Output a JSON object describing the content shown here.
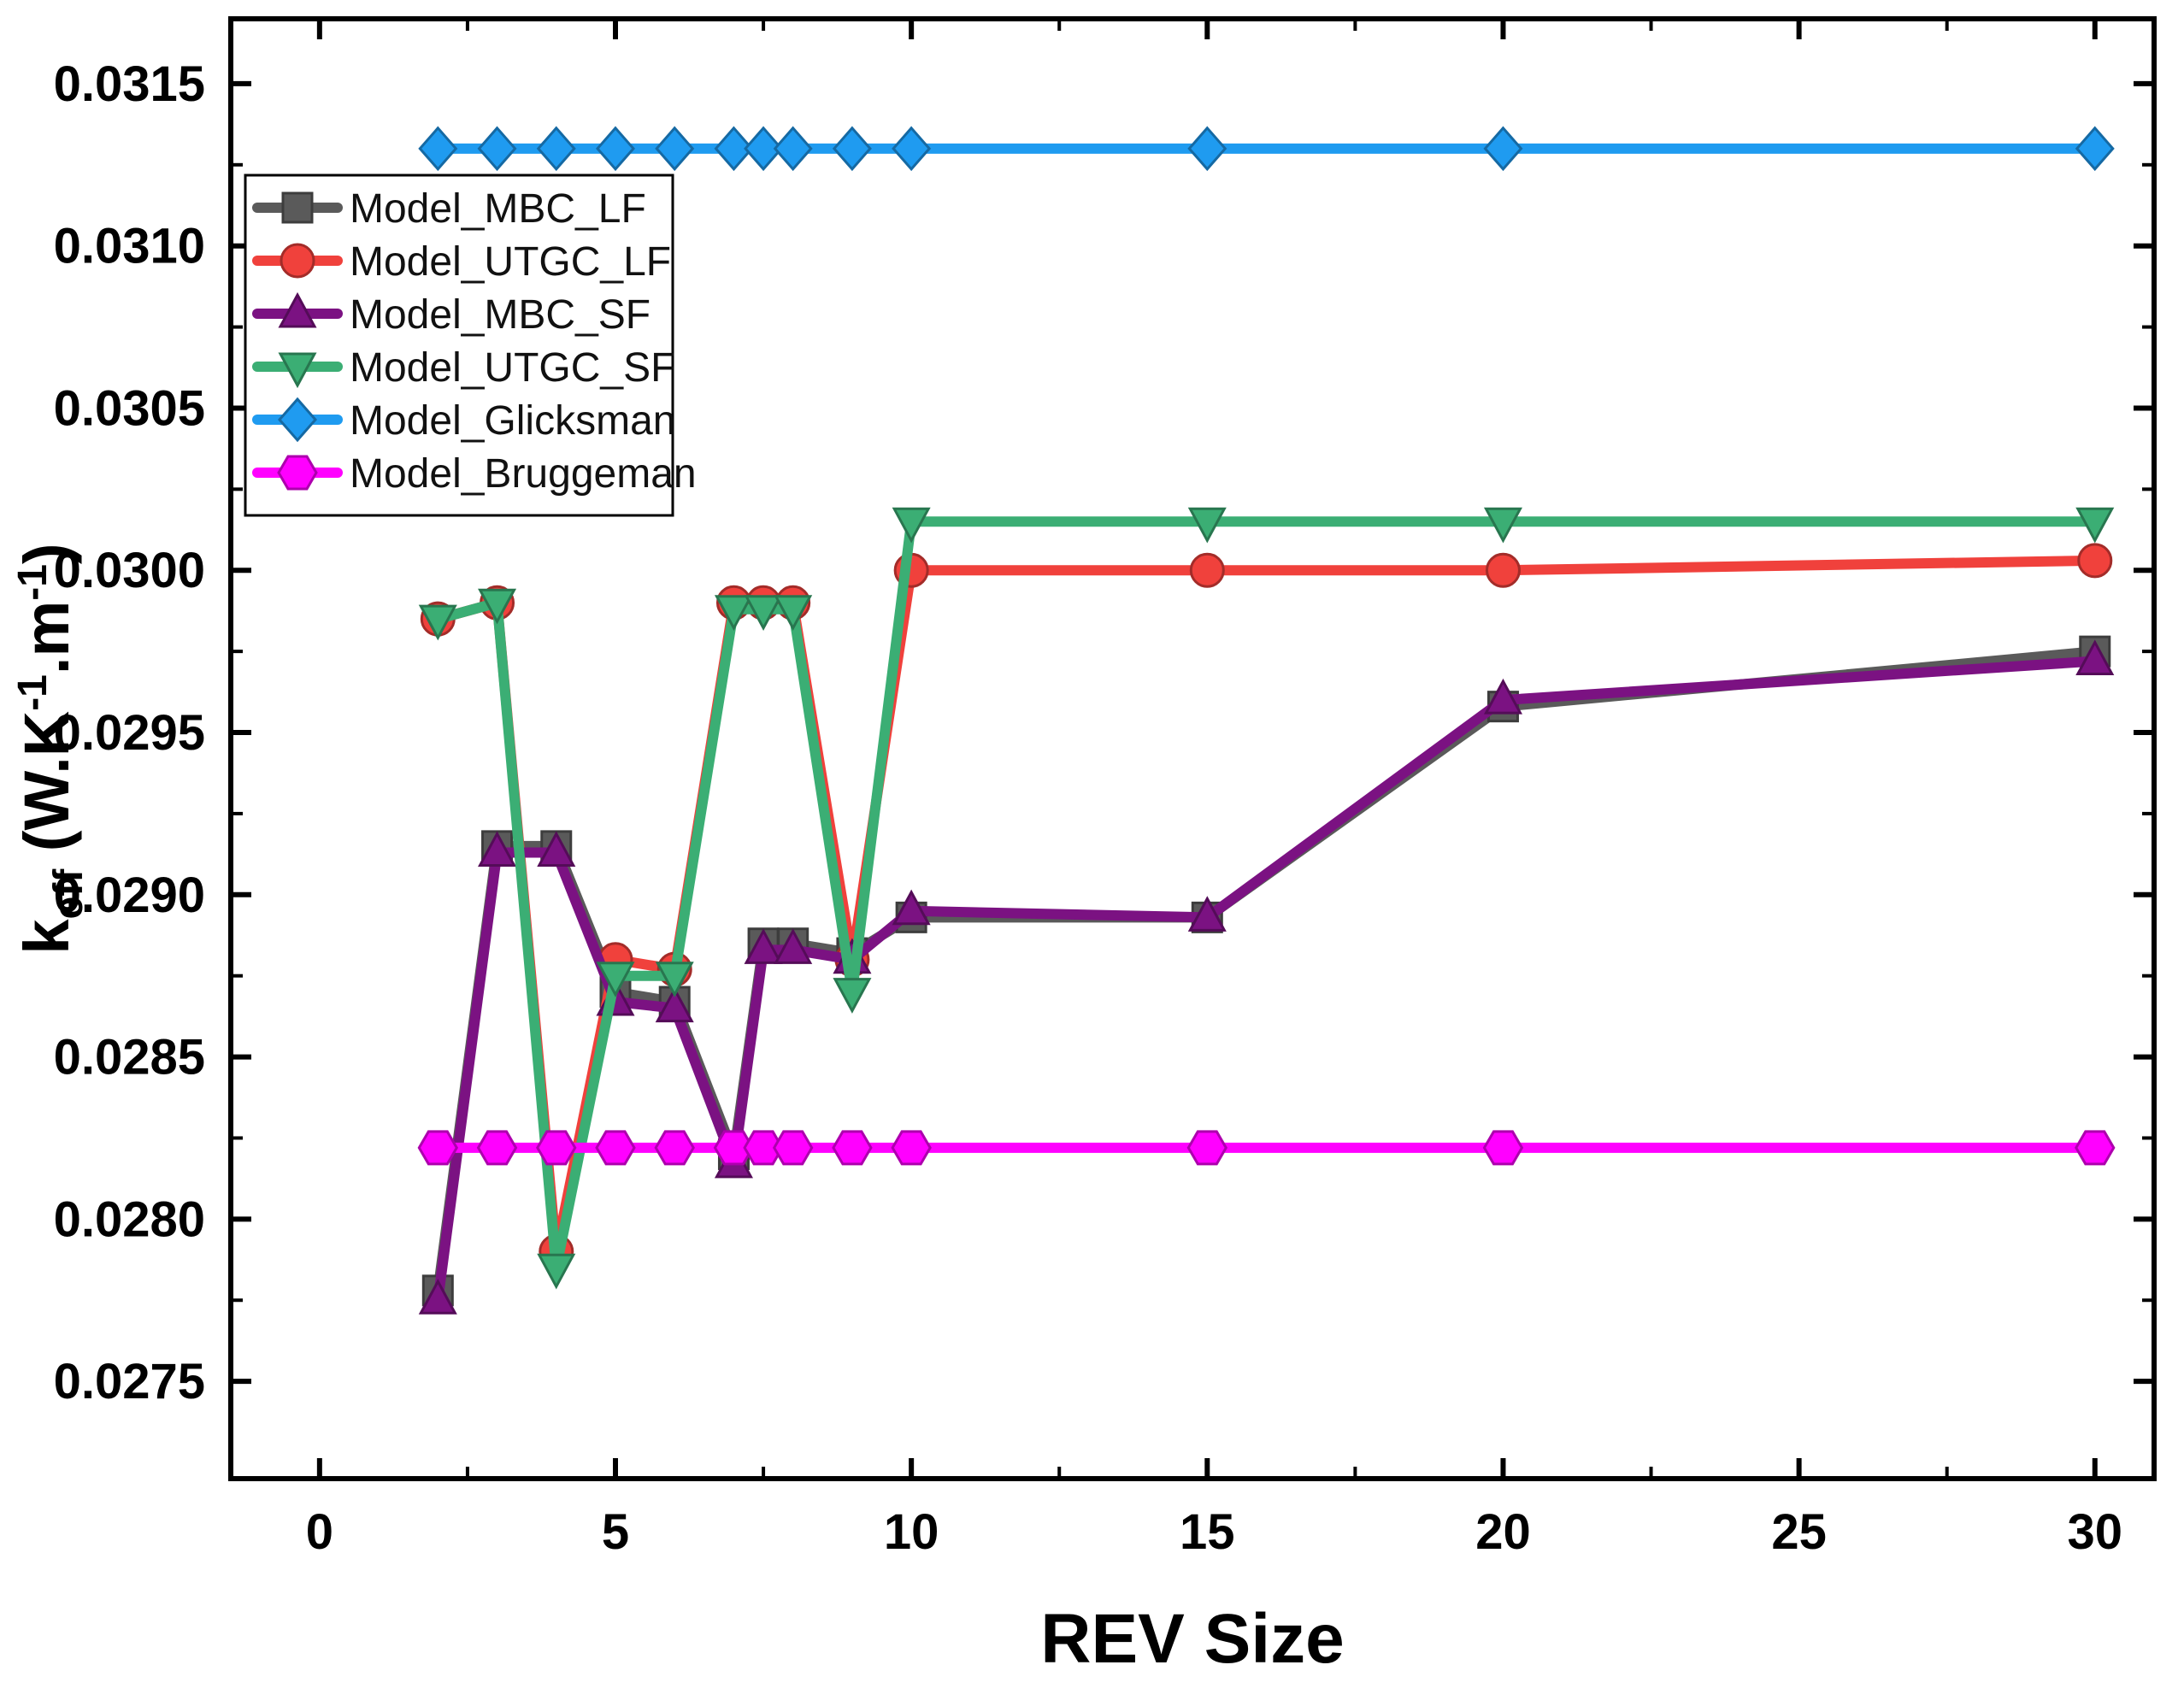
{
  "figure": {
    "background": "#ffffff",
    "frame_color": "#000000"
  },
  "chart_data": {
    "type": "line",
    "title": "",
    "xlabel": "REV Size",
    "ylabel_parts": [
      {
        "t": "k"
      },
      {
        "t": "eff",
        "sub": true
      },
      {
        "t": " (W.K"
      },
      {
        "t": "-1",
        "sup": true
      },
      {
        "t": ".m"
      },
      {
        "t": "-1",
        "sup": true
      },
      {
        "t": ")"
      }
    ],
    "grid": false,
    "legend_position": "upper-left",
    "xlim": [
      -1.5,
      31
    ],
    "ylim": [
      0.0272,
      0.0317
    ],
    "x_ticks": [
      0,
      5,
      10,
      15,
      20,
      25,
      30
    ],
    "x_tick_labels": [
      "0",
      "5",
      "10",
      "15",
      "20",
      "25",
      "30"
    ],
    "y_ticks": [
      0.0275,
      0.028,
      0.0285,
      0.029,
      0.0295,
      0.03,
      0.0305,
      0.031,
      0.0315
    ],
    "y_tick_labels": [
      "0.0275",
      "0.0280",
      "0.0285",
      "0.0290",
      "0.0295",
      "0.0300",
      "0.0305",
      "0.0310",
      "0.0315"
    ],
    "x": [
      2,
      3,
      4,
      5,
      6,
      7,
      7.5,
      8,
      9,
      10,
      15,
      20,
      30
    ],
    "series": [
      {
        "name": "Model_MBC_LF",
        "color": "#5A5A5A",
        "marker": "square",
        "values": [
          0.02778,
          0.02915,
          0.02915,
          0.0287,
          0.02867,
          0.0282,
          0.02885,
          0.02885,
          0.02882,
          0.02893,
          0.02893,
          0.02958,
          0.02975
        ]
      },
      {
        "name": "Model_UTGC_LF",
        "color": "#F0413C",
        "marker": "circle",
        "values": [
          0.02985,
          0.0299,
          0.0279,
          0.0288,
          0.02877,
          0.0299,
          0.0299,
          0.0299,
          0.0288,
          0.03,
          0.03,
          0.03,
          0.03003
        ]
      },
      {
        "name": "Model_MBC_SF",
        "color": "#7B1282",
        "marker": "triangle-up",
        "values": [
          0.02775,
          0.02913,
          0.02913,
          0.02867,
          0.02865,
          0.02817,
          0.02883,
          0.02883,
          0.0288,
          0.02895,
          0.02893,
          0.0296,
          0.02972
        ]
      },
      {
        "name": "Model_UTGC_SF",
        "color": "#3BAE74",
        "marker": "triangle-down",
        "values": [
          0.02985,
          0.0299,
          0.02785,
          0.02875,
          0.02875,
          0.02988,
          0.02988,
          0.02988,
          0.0287,
          0.03015,
          0.03015,
          0.03015,
          0.03015
        ]
      },
      {
        "name": "Model_Glicksman",
        "color": "#1F9BF0",
        "marker": "diamond",
        "values": [
          0.0313,
          0.0313,
          0.0313,
          0.0313,
          0.0313,
          0.0313,
          0.0313,
          0.0313,
          0.0313,
          0.0313,
          0.0313,
          0.0313,
          0.0313
        ]
      },
      {
        "name": "Model_Bruggeman",
        "color": "#FF00FF",
        "marker": "hexagon",
        "values": [
          0.02822,
          0.02822,
          0.02822,
          0.02822,
          0.02822,
          0.02822,
          0.02822,
          0.02822,
          0.02822,
          0.02822,
          0.02822,
          0.02822,
          0.02822
        ]
      }
    ]
  }
}
